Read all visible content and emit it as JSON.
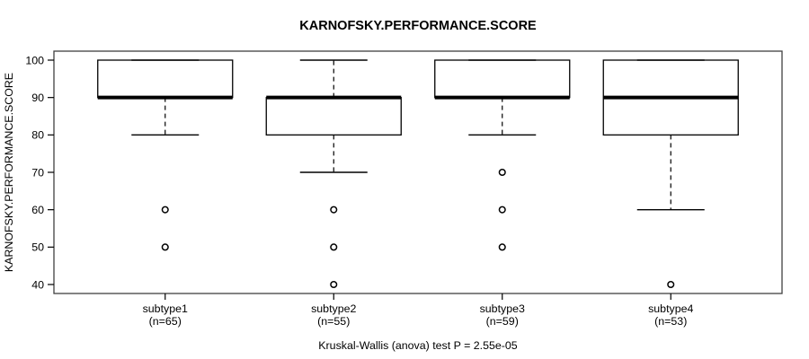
{
  "colors": {
    "line": "#000000",
    "frame": "#404040",
    "background": "#ffffff",
    "text": "#000000"
  },
  "chart_data": {
    "type": "boxplot",
    "title": "KARNOFSKY.PERFORMANCE.SCORE",
    "ylabel": "KARNOFSKY.PERFORMANCE.SCORE",
    "xlabel": "",
    "footer": "Kruskal-Wallis (anova) test P = 2.55e-05",
    "grid": false,
    "legend_position": "none",
    "y_ticks": [
      40,
      50,
      60,
      70,
      80,
      90,
      100
    ],
    "ylim": [
      37.6,
      102.4
    ],
    "xlim": [
      0.34,
      4.66
    ],
    "groups": [
      {
        "label": "subtype1",
        "n_label": "(n=65)",
        "position": 1,
        "q1": 90,
        "median": 90,
        "q3": 100,
        "whisker_low": 80,
        "whisker_high": 100,
        "outliers": [
          60,
          50
        ]
      },
      {
        "label": "subtype2",
        "n_label": "(n=55)",
        "position": 2,
        "q1": 80,
        "median": 90,
        "q3": 90,
        "whisker_low": 70,
        "whisker_high": 100,
        "outliers": [
          60,
          50,
          40
        ]
      },
      {
        "label": "subtype3",
        "n_label": "(n=59)",
        "position": 3,
        "q1": 90,
        "median": 90,
        "q3": 100,
        "whisker_low": 80,
        "whisker_high": 100,
        "outliers": [
          70,
          60,
          50
        ]
      },
      {
        "label": "subtype4",
        "n_label": "(n=53)",
        "position": 4,
        "q1": 80,
        "median": 90,
        "q3": 100,
        "whisker_low": 60,
        "whisker_high": 100,
        "outliers": [
          40
        ]
      }
    ]
  }
}
